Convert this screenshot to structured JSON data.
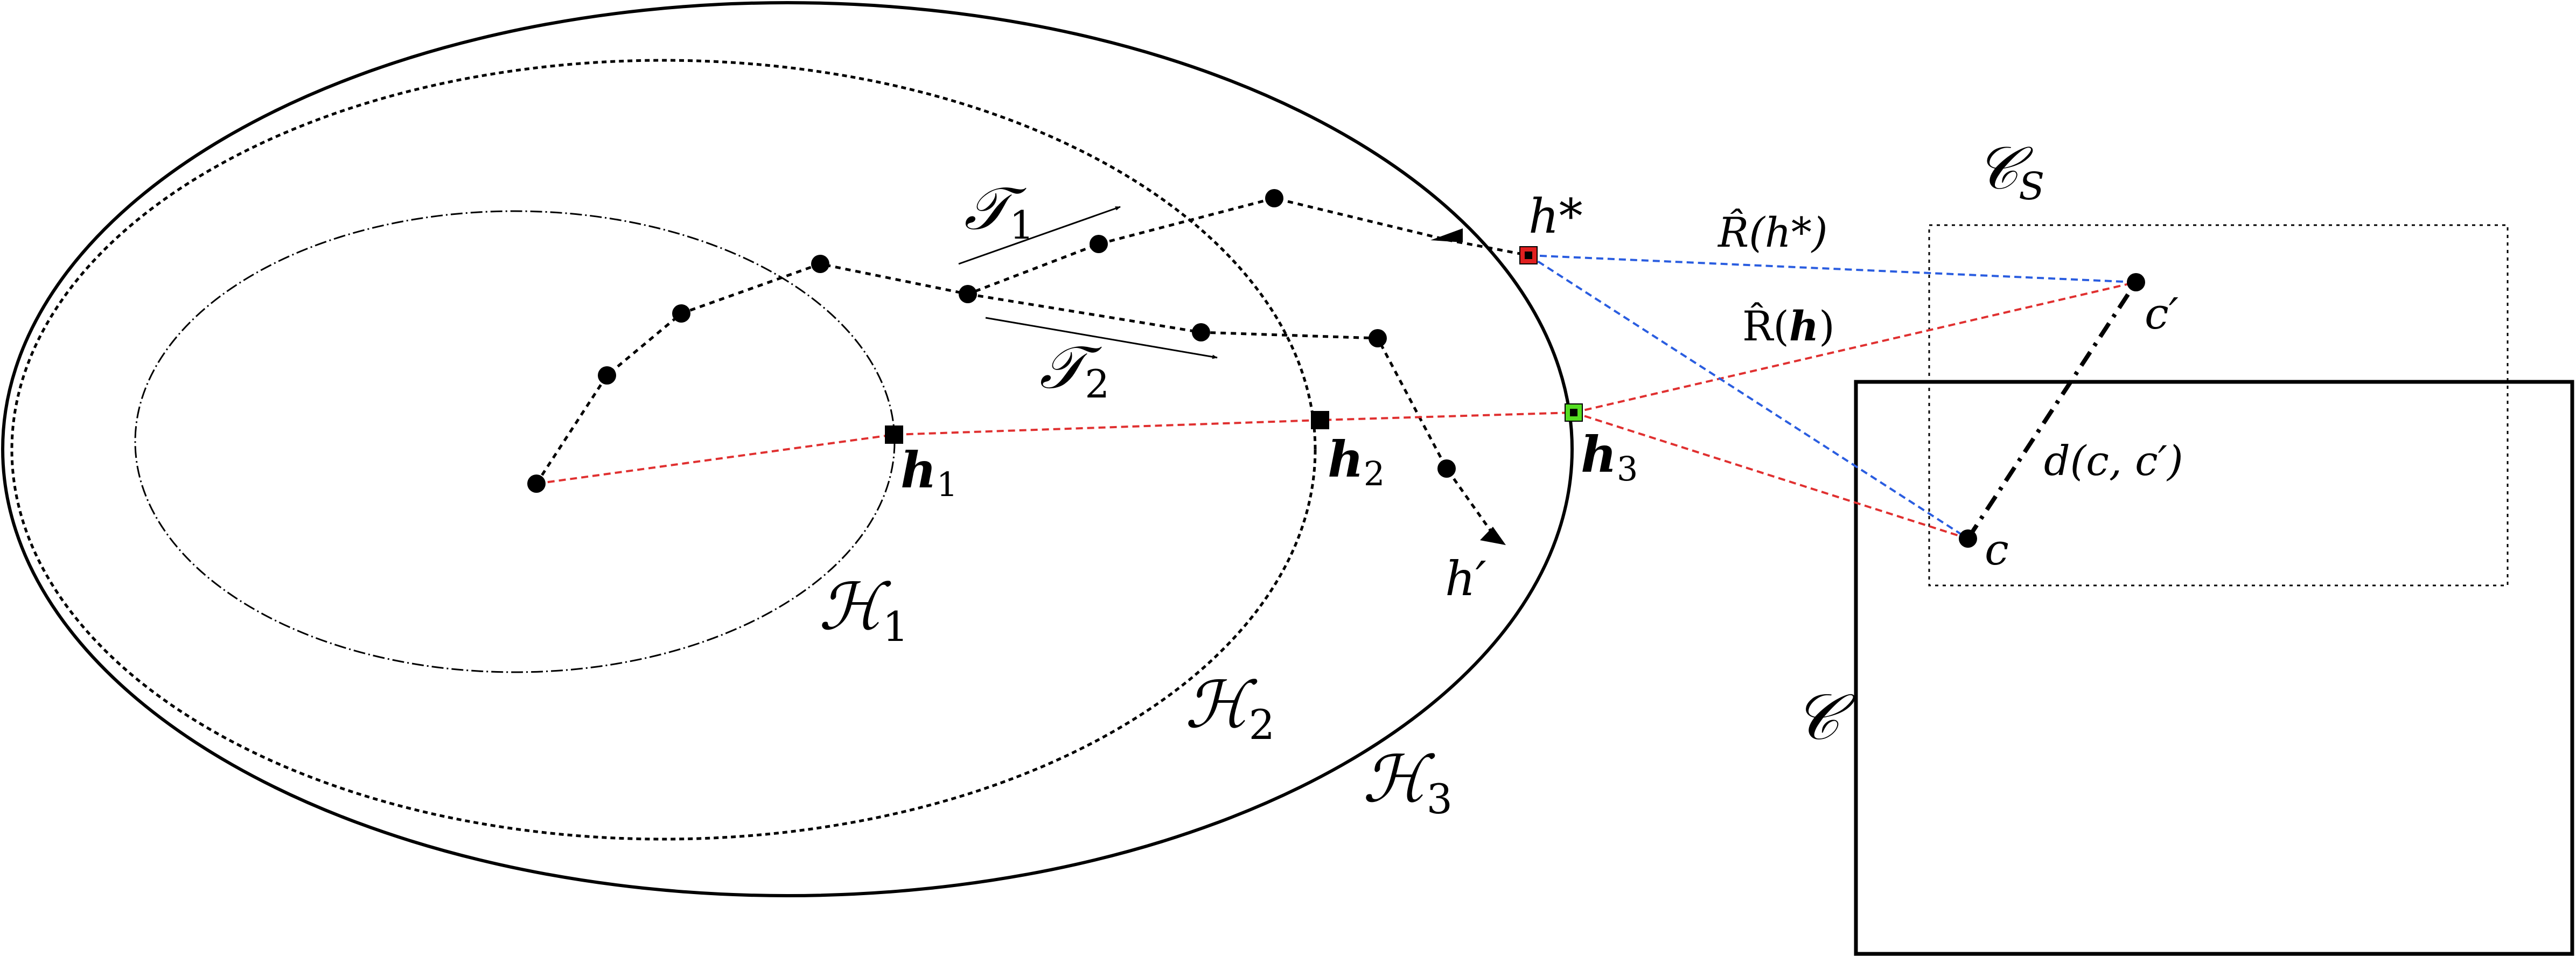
{
  "regions": {
    "h1": {
      "label": "ℋ",
      "sub": "1"
    },
    "h2": {
      "label": "ℋ",
      "sub": "2"
    },
    "h3": {
      "label": "ℋ",
      "sub": "3"
    }
  },
  "trajectories": {
    "t1": {
      "label": "𝒯",
      "sub": "1"
    },
    "t2": {
      "label": "𝒯",
      "sub": "2"
    }
  },
  "points": {
    "h_star": "h*",
    "h_prime": "h′",
    "bh1": {
      "label": "h",
      "sub": "1"
    },
    "bh2": {
      "label": "h",
      "sub": "2"
    },
    "bh3": {
      "label": "h",
      "sub": "3"
    },
    "c": "c",
    "c_prime": "c′"
  },
  "sets": {
    "cs": {
      "label": "𝒞",
      "sub": "S"
    },
    "c": "𝒞"
  },
  "edges": {
    "r_hat_hstar": "R̂(h*)",
    "r_hat_h_prefix": "R̂(",
    "r_hat_h_var": "h",
    "r_hat_h_suffix": ")",
    "dist": "d(c, c′)"
  },
  "colors": {
    "red_path": "#e03030",
    "blue_path": "#2a5de0",
    "h_star_marker": "#e02020",
    "h3_marker": "#55dd22"
  }
}
